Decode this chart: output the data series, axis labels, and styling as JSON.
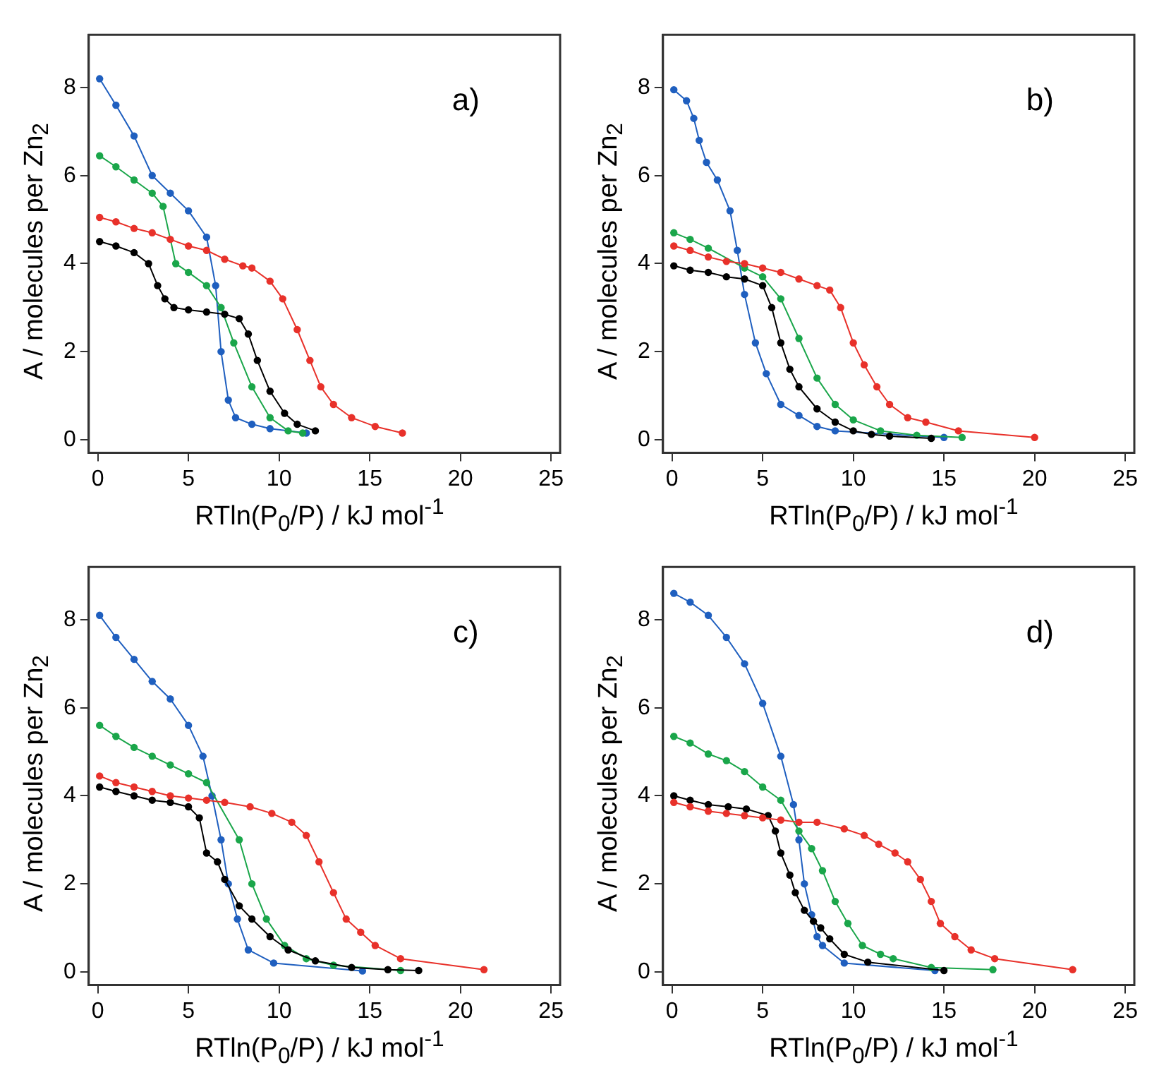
{
  "chart_data": [
    {
      "type": "line",
      "marker": "circle",
      "grid": false,
      "legend": false,
      "annotations": [
        "a)"
      ],
      "xlabel": "RTln(P$_{0}$/P) / kJ mol$^{-1}$",
      "ylabel": "A / molecules per Zn$_{2}$",
      "xlim": [
        -0.5,
        25.5
      ],
      "ylim": [
        -0.3,
        9.2
      ],
      "xticks": [
        0,
        5,
        10,
        15,
        20,
        25
      ],
      "yticks": [
        0,
        2,
        4,
        6,
        8
      ],
      "series": [
        {
          "color": "#e8312a",
          "x": [
            0.1,
            1,
            2,
            3,
            4,
            5,
            6,
            7,
            8,
            8.5,
            9.5,
            10.2,
            11,
            11.7,
            12.3,
            13,
            14,
            15.3,
            16.8
          ],
          "values": [
            5.05,
            4.95,
            4.8,
            4.7,
            4.55,
            4.4,
            4.3,
            4.1,
            3.95,
            3.9,
            3.6,
            3.2,
            2.5,
            1.8,
            1.2,
            0.8,
            0.5,
            0.3,
            0.15
          ]
        },
        {
          "color": "#000000",
          "x": [
            0.1,
            1,
            2,
            2.8,
            3.3,
            3.7,
            4.2,
            5,
            6,
            7,
            7.8,
            8.3,
            8.8,
            9.5,
            10.3,
            11,
            12
          ],
          "values": [
            4.5,
            4.4,
            4.25,
            4.0,
            3.5,
            3.2,
            3.0,
            2.95,
            2.9,
            2.85,
            2.75,
            2.4,
            1.8,
            1.1,
            0.6,
            0.35,
            0.2
          ]
        },
        {
          "color": "#1aa64a",
          "x": [
            0.1,
            1,
            2,
            3,
            3.6,
            4.3,
            5,
            6,
            6.8,
            7.5,
            8.5,
            9.5,
            10.5,
            11.3
          ],
          "values": [
            6.45,
            6.2,
            5.9,
            5.6,
            5.3,
            4.0,
            3.8,
            3.5,
            3.0,
            2.2,
            1.2,
            0.5,
            0.2,
            0.15
          ]
        },
        {
          "color": "#1f5fbf",
          "x": [
            0.1,
            1,
            2,
            3,
            4,
            5,
            6,
            6.5,
            6.8,
            7.2,
            7.6,
            8.5,
            9.5,
            11.5
          ],
          "values": [
            8.2,
            7.6,
            6.9,
            6.0,
            5.6,
            5.2,
            4.6,
            3.5,
            2.0,
            0.9,
            0.5,
            0.35,
            0.25,
            0.15
          ]
        }
      ]
    },
    {
      "type": "line",
      "marker": "circle",
      "grid": false,
      "legend": false,
      "annotations": [
        "b)"
      ],
      "xlabel": "RTln(P$_{0}$/P) / kJ mol$^{-1}$",
      "ylabel": "A / molecules per Zn$_{2}$",
      "xlim": [
        -0.5,
        25.5
      ],
      "ylim": [
        -0.3,
        9.2
      ],
      "xticks": [
        0,
        5,
        10,
        15,
        20,
        25
      ],
      "yticks": [
        0,
        2,
        4,
        6,
        8
      ],
      "series": [
        {
          "color": "#e8312a",
          "x": [
            0.1,
            1,
            2,
            3,
            4,
            5,
            6,
            7,
            8,
            8.7,
            9.3,
            10,
            10.6,
            11.3,
            12,
            13,
            14,
            15.8,
            20
          ],
          "values": [
            4.4,
            4.3,
            4.15,
            4.05,
            4.0,
            3.9,
            3.8,
            3.65,
            3.5,
            3.4,
            3.0,
            2.2,
            1.7,
            1.2,
            0.8,
            0.5,
            0.4,
            0.2,
            0.05
          ]
        },
        {
          "color": "#000000",
          "x": [
            0.1,
            1,
            2,
            3,
            4,
            5,
            5.5,
            6,
            6.5,
            7,
            8,
            9,
            10,
            11,
            12,
            14.3
          ],
          "values": [
            3.95,
            3.85,
            3.8,
            3.7,
            3.65,
            3.5,
            3.0,
            2.2,
            1.6,
            1.2,
            0.7,
            0.4,
            0.2,
            0.12,
            0.08,
            0.03
          ]
        },
        {
          "color": "#1aa64a",
          "x": [
            0.1,
            1,
            2,
            4,
            5,
            6,
            7,
            8,
            9,
            10,
            11.5,
            13.5,
            16
          ],
          "values": [
            4.7,
            4.55,
            4.35,
            3.9,
            3.7,
            3.2,
            2.3,
            1.4,
            0.8,
            0.45,
            0.2,
            0.1,
            0.05
          ]
        },
        {
          "color": "#1f5fbf",
          "x": [
            0.1,
            0.8,
            1.2,
            1.5,
            1.9,
            2.5,
            3.2,
            3.6,
            4.0,
            4.6,
            5.2,
            6,
            7,
            8,
            9,
            15
          ],
          "values": [
            7.95,
            7.7,
            7.3,
            6.8,
            6.3,
            5.9,
            5.2,
            4.3,
            3.3,
            2.2,
            1.5,
            0.8,
            0.55,
            0.3,
            0.2,
            0.05
          ]
        }
      ]
    },
    {
      "type": "line",
      "marker": "circle",
      "grid": false,
      "legend": false,
      "annotations": [
        "c)"
      ],
      "xlabel": "RTln(P$_{0}$/P) / kJ mol$^{-1}$",
      "ylabel": "A / molecules per Zn$_{2}$",
      "xlim": [
        -0.5,
        25.5
      ],
      "ylim": [
        -0.3,
        9.2
      ],
      "xticks": [
        0,
        5,
        10,
        15,
        20,
        25
      ],
      "yticks": [
        0,
        2,
        4,
        6,
        8
      ],
      "series": [
        {
          "color": "#e8312a",
          "x": [
            0.1,
            1,
            2,
            3,
            4,
            5,
            6,
            7,
            8.4,
            9.6,
            10.7,
            11.5,
            12.2,
            13,
            13.7,
            14.5,
            15.3,
            16.7,
            21.3
          ],
          "values": [
            4.45,
            4.3,
            4.2,
            4.1,
            4.0,
            3.95,
            3.9,
            3.85,
            3.75,
            3.6,
            3.4,
            3.1,
            2.5,
            1.8,
            1.2,
            0.9,
            0.6,
            0.3,
            0.05
          ]
        },
        {
          "color": "#000000",
          "x": [
            0.1,
            1,
            2,
            3,
            4,
            5,
            5.6,
            6,
            6.6,
            7,
            7.8,
            8.5,
            9.5,
            10.5,
            12,
            14,
            16,
            17.7
          ],
          "values": [
            4.2,
            4.1,
            4.0,
            3.9,
            3.85,
            3.75,
            3.5,
            2.7,
            2.5,
            2.1,
            1.5,
            1.2,
            0.8,
            0.5,
            0.25,
            0.1,
            0.05,
            0.03
          ]
        },
        {
          "color": "#1aa64a",
          "x": [
            0.1,
            1,
            2,
            3,
            4,
            5,
            6,
            7.8,
            8.5,
            9.3,
            10.3,
            11.5,
            13,
            16.7
          ],
          "values": [
            5.6,
            5.35,
            5.1,
            4.9,
            4.7,
            4.5,
            4.3,
            3.0,
            2.0,
            1.2,
            0.6,
            0.3,
            0.15,
            0.03
          ]
        },
        {
          "color": "#1f5fbf",
          "x": [
            0.1,
            1,
            2,
            3,
            4,
            5,
            5.8,
            6.3,
            6.8,
            7.2,
            7.7,
            8.3,
            9.7,
            14.6
          ],
          "values": [
            8.1,
            7.6,
            7.1,
            6.6,
            6.2,
            5.6,
            4.9,
            4.0,
            3.0,
            2.0,
            1.2,
            0.5,
            0.2,
            0.02
          ]
        }
      ]
    },
    {
      "type": "line",
      "marker": "circle",
      "grid": false,
      "legend": false,
      "annotations": [
        "d)"
      ],
      "xlabel": "RTln(P$_{0}$/P) / kJ mol$^{-1}$",
      "ylabel": "A / molecules per Zn$_{2}$",
      "xlim": [
        -0.5,
        25.5
      ],
      "ylim": [
        -0.3,
        9.2
      ],
      "xticks": [
        0,
        5,
        10,
        15,
        20,
        25
      ],
      "yticks": [
        0,
        2,
        4,
        6,
        8
      ],
      "series": [
        {
          "color": "#e8312a",
          "x": [
            0.1,
            1,
            2,
            3,
            4,
            5,
            6,
            7,
            8,
            9.5,
            10.6,
            11.4,
            12.3,
            13,
            13.7,
            14.3,
            14.8,
            15.6,
            16.5,
            17.8,
            22.1
          ],
          "values": [
            3.85,
            3.75,
            3.65,
            3.6,
            3.55,
            3.5,
            3.45,
            3.4,
            3.4,
            3.25,
            3.1,
            2.9,
            2.7,
            2.5,
            2.1,
            1.6,
            1.1,
            0.8,
            0.5,
            0.3,
            0.05
          ]
        },
        {
          "color": "#000000",
          "x": [
            0.1,
            1,
            2,
            3.1,
            4.1,
            5.3,
            5.7,
            6.0,
            6.5,
            6.8,
            7.3,
            7.8,
            8.2,
            8.7,
            9.5,
            10.8,
            15
          ],
          "values": [
            4.0,
            3.9,
            3.8,
            3.75,
            3.7,
            3.55,
            3.2,
            2.7,
            2.2,
            1.8,
            1.4,
            1.15,
            1.0,
            0.75,
            0.4,
            0.22,
            0.03
          ]
        },
        {
          "color": "#1aa64a",
          "x": [
            0.1,
            1,
            2,
            3,
            4,
            5,
            6,
            7,
            7.7,
            8.3,
            9,
            9.7,
            10.5,
            11.5,
            12.2,
            14.3,
            17.7
          ],
          "values": [
            5.35,
            5.2,
            4.95,
            4.8,
            4.55,
            4.2,
            3.9,
            3.2,
            2.8,
            2.3,
            1.6,
            1.1,
            0.6,
            0.4,
            0.3,
            0.1,
            0.05
          ]
        },
        {
          "color": "#1f5fbf",
          "x": [
            0.1,
            1,
            2,
            3,
            4,
            5,
            6,
            6.7,
            7,
            7.3,
            7.7,
            8,
            8.3,
            9.5,
            14.5
          ],
          "values": [
            8.6,
            8.4,
            8.1,
            7.6,
            7.0,
            6.1,
            4.9,
            3.8,
            3.0,
            2.0,
            1.3,
            0.8,
            0.6,
            0.2,
            0.03
          ]
        }
      ]
    }
  ]
}
